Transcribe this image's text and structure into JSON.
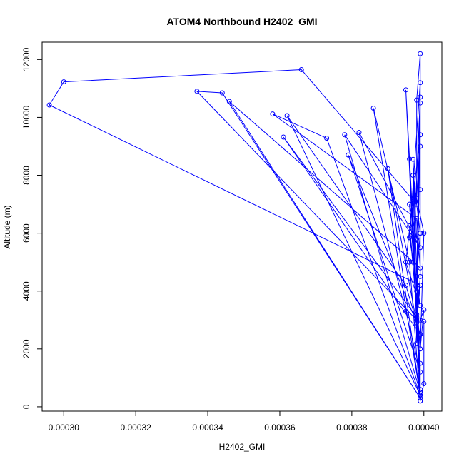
{
  "chart_data": {
    "type": "line",
    "title": "ATOM4 Northbound H2402_GMI",
    "xlabel": "H2402_GMI",
    "ylabel": "Altitude (m)",
    "xlim": [
      0.000294,
      0.000405
    ],
    "ylim": [
      -150,
      12600
    ],
    "x_ticks": [
      0.0003,
      0.00032,
      0.00034,
      0.00036,
      0.00038,
      0.0004
    ],
    "x_tick_labels": [
      "0.00030",
      "0.00032",
      "0.00034",
      "0.00036",
      "0.00038",
      "0.00040"
    ],
    "y_ticks": [
      0,
      2000,
      4000,
      6000,
      8000,
      10000,
      12000
    ],
    "y_tick_labels": [
      "0",
      "2000",
      "4000",
      "6000",
      "8000",
      "10000",
      "12000"
    ],
    "grid": false,
    "legend": "none",
    "series": [
      {
        "color": "#0000ff",
        "marker": "open-circle",
        "points": [
          [
            0.000399,
            200
          ],
          [
            0.000399,
            1500
          ],
          [
            0.000398,
            3000
          ],
          [
            0.000399,
            4500
          ],
          [
            0.000399,
            6000
          ],
          [
            0.000399,
            7500
          ],
          [
            0.000399,
            9000
          ],
          [
            0.000399,
            10500
          ],
          [
            0.000399,
            12200
          ],
          [
            0.000398,
            10600
          ],
          [
            0.000398,
            7000
          ],
          [
            0.000366,
            11650
          ],
          [
            0.0003,
            11230
          ],
          [
            0.000296,
            10430
          ],
          [
            0.000399,
            4200
          ],
          [
            0.000398,
            3000
          ],
          [
            0.000337,
            10900
          ],
          [
            0.000344,
            10850
          ],
          [
            0.000399,
            300
          ],
          [
            0.000346,
            10550
          ],
          [
            0.000399,
            4800
          ],
          [
            0.000398,
            6500
          ],
          [
            0.000358,
            10120
          ],
          [
            0.000373,
            9280
          ],
          [
            0.000399,
            400
          ],
          [
            0.000362,
            10060
          ],
          [
            0.000395,
            4200
          ],
          [
            0.000399,
            2500
          ],
          [
            0.000361,
            9320
          ],
          [
            0.000398,
            3100
          ],
          [
            0.000399,
            500
          ],
          [
            0.000378,
            9400
          ],
          [
            0.000399,
            5500
          ],
          [
            0.000382,
            9480
          ],
          [
            0.000395,
            3300
          ],
          [
            0.000399,
            1200
          ],
          [
            0.000379,
            8700
          ],
          [
            0.000398,
            2900
          ],
          [
            0.00039,
            8230
          ],
          [
            0.000399,
            400
          ],
          [
            0.000386,
            10320
          ],
          [
            0.000396,
            5000
          ],
          [
            0.000399,
            200
          ],
          [
            0.000395,
            10950
          ],
          [
            0.000398,
            4000
          ],
          [
            0.000399,
            9400
          ],
          [
            0.000398,
            3200
          ],
          [
            0.000396,
            8560
          ],
          [
            0.000399,
            600
          ],
          [
            0.000397,
            8550
          ],
          [
            0.000398,
            5800
          ],
          [
            0.000396,
            7000
          ],
          [
            0.000399,
            2000
          ],
          [
            0.000396,
            6250
          ],
          [
            0.000397,
            5000
          ],
          [
            0.000399,
            10700
          ],
          [
            0.000398,
            2200
          ],
          [
            0.000397,
            8000
          ],
          [
            0.000399,
            6000
          ],
          [
            0.000398,
            4500
          ],
          [
            0.000399,
            11200
          ],
          [
            0.000396,
            5850
          ],
          [
            0.000399,
            3500
          ],
          [
            0.000395,
            5000
          ],
          [
            0.000399,
            9400
          ],
          [
            0.000398,
            7200
          ],
          [
            0.0004,
            6000
          ],
          [
            0.000399,
            2000
          ],
          [
            0.0004,
            3350
          ],
          [
            0.000399,
            3000
          ],
          [
            0.0004,
            2950
          ],
          [
            0.0004,
            800
          ],
          [
            0.000399,
            200
          ]
        ]
      }
    ]
  }
}
